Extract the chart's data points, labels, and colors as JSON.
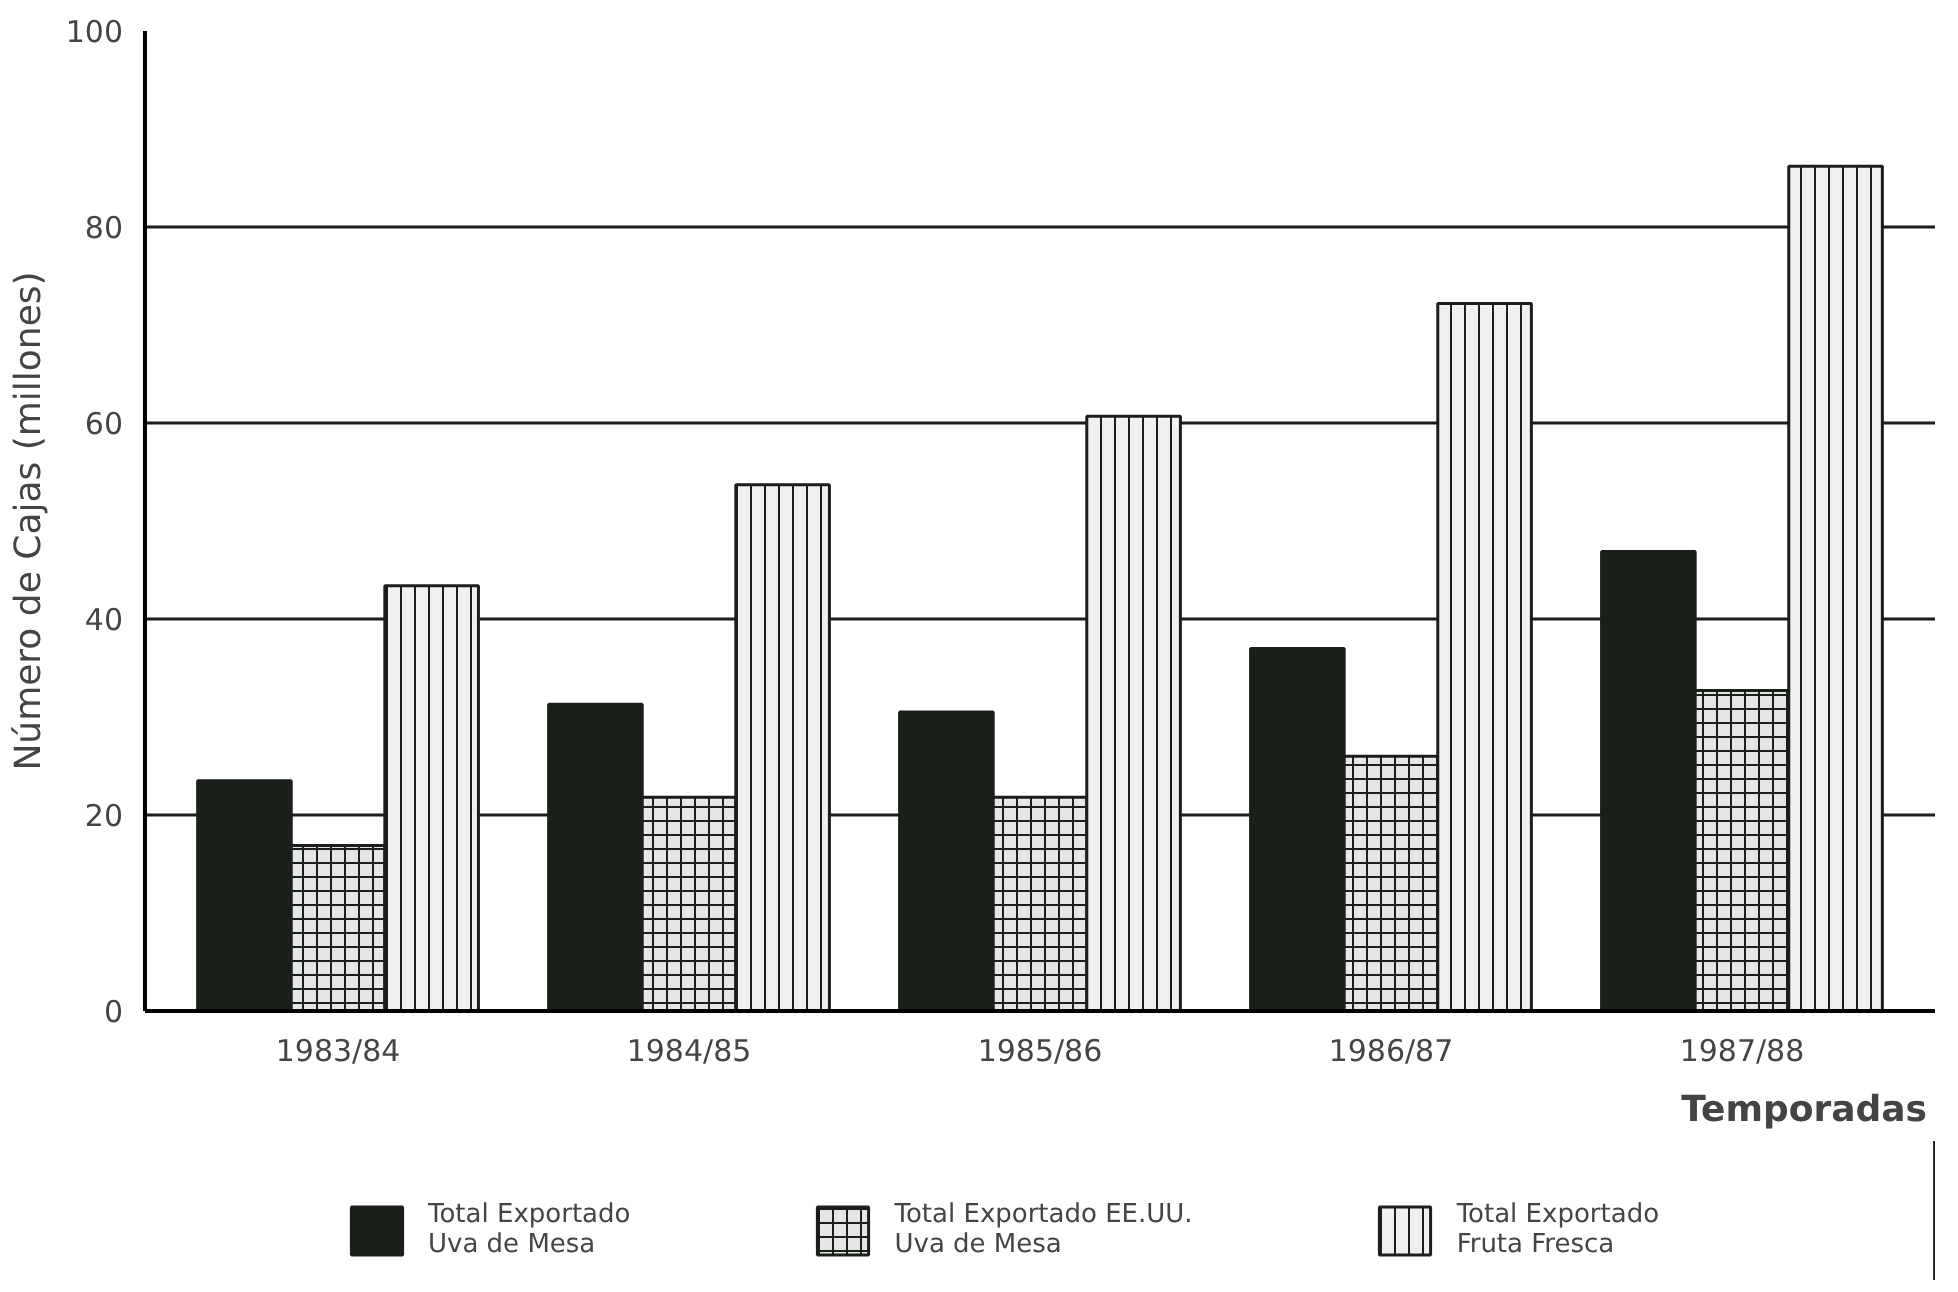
{
  "chart_data": {
    "type": "bar",
    "xlabel": "Temporadas",
    "ylabel": "Número de Cajas (millones)",
    "categories": [
      "1983/84",
      "1984/85",
      "1985/86",
      "1986/87",
      "1987/88"
    ],
    "series": [
      {
        "name": "Total Exportado\nUva de Mesa",
        "color": "#1a1f1a",
        "values": [
          23.5,
          31.3,
          30.5,
          37,
          46.9
        ]
      },
      {
        "name": "Total Exportado EE.UU.\nUva de Mesa",
        "color": "#e6e6e6",
        "values": [
          16.9,
          21.8,
          21.8,
          26,
          32.7
        ]
      },
      {
        "name": "Total Exportado\nFruta Fresca",
        "color": "#f0f0f0",
        "values": [
          43.4,
          53.7,
          60.7,
          72.2,
          86.2
        ]
      }
    ],
    "ylim": [
      0,
      100
    ],
    "yticks": [
      0,
      20,
      40,
      60,
      80,
      100
    ],
    "grid": "y",
    "legend": "bottom"
  }
}
